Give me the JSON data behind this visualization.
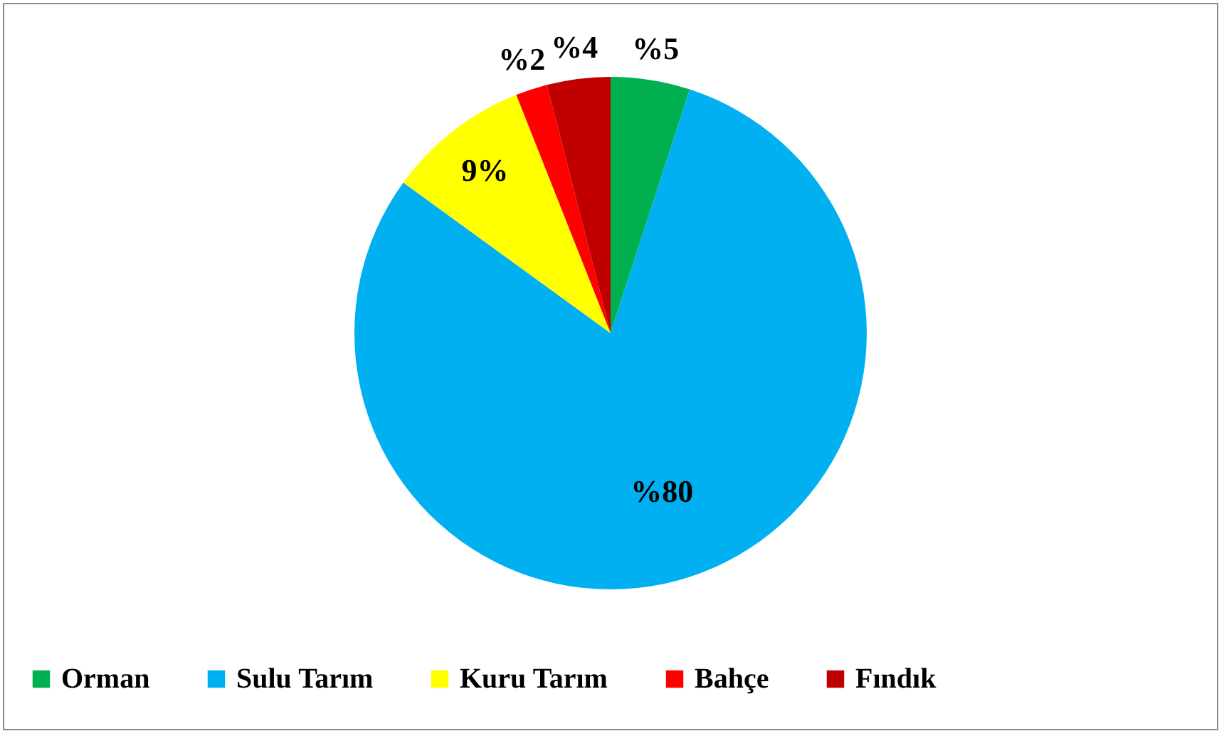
{
  "chart_data": {
    "type": "pie",
    "categories": [
      "Orman",
      "Sulu Tarım",
      "Kuru Tarım",
      "Bahçe",
      "Fındık"
    ],
    "values": [
      5,
      80,
      9,
      2,
      4
    ],
    "colors": [
      "#00b050",
      "#00b0f0",
      "#ffff00",
      "#ff0000",
      "#c00000"
    ],
    "value_labels": [
      "%5",
      "%80",
      "9%",
      "%2",
      "%4"
    ],
    "legend": "bottom"
  }
}
